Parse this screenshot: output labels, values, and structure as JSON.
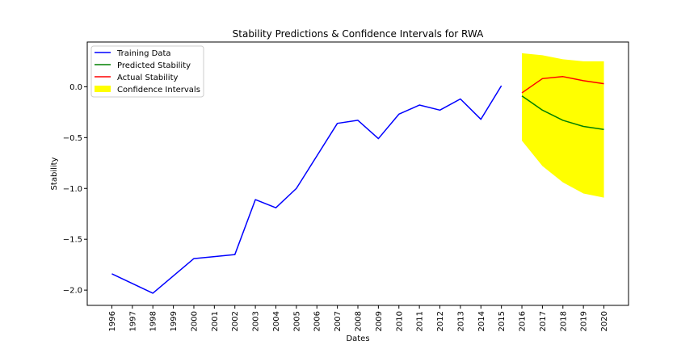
{
  "chart_data": {
    "type": "line",
    "title": "Stability Predictions & Confidence Intervals for RWA",
    "xlabel": "Dates",
    "ylabel": "Stability",
    "x_ticks": [
      "1996",
      "1997",
      "1998",
      "1999",
      "2000",
      "2001",
      "2002",
      "2003",
      "2004",
      "2005",
      "2006",
      "2007",
      "2008",
      "2009",
      "2010",
      "2011",
      "2012",
      "2013",
      "2014",
      "2015",
      "2016",
      "2017",
      "2018",
      "2019",
      "2020"
    ],
    "y_ticks": [
      "−2.0",
      "−1.5",
      "−1.0",
      "−0.5",
      "0.0"
    ],
    "xlim": [
      1994.8,
      2021.2
    ],
    "ylim": [
      -2.15,
      0.44
    ],
    "grid": false,
    "legend_position": "upper-left",
    "series": [
      {
        "name": "Training Data",
        "color": "#0000ff",
        "x": [
          1996,
          1998,
          2000,
          2002,
          2003,
          2004,
          2005,
          2006,
          2007,
          2008,
          2009,
          2010,
          2011,
          2012,
          2013,
          2014,
          2015
        ],
        "y": [
          -1.84,
          -2.03,
          -1.69,
          -1.65,
          -1.11,
          -1.19,
          -1.0,
          -0.68,
          -0.36,
          -0.33,
          -0.51,
          -0.27,
          -0.18,
          -0.23,
          -0.12,
          -0.32,
          0.01
        ]
      },
      {
        "name": "Predicted Stability",
        "color": "#008000",
        "x": [
          2016,
          2017,
          2018,
          2019,
          2020
        ],
        "y": [
          -0.09,
          -0.23,
          -0.33,
          -0.39,
          -0.42
        ]
      },
      {
        "name": "Actual Stability",
        "color": "#ff0000",
        "x": [
          2016,
          2017,
          2018,
          2019,
          2020
        ],
        "y": [
          -0.06,
          0.08,
          0.1,
          0.06,
          0.03
        ]
      }
    ],
    "band": {
      "name": "Confidence Intervals",
      "color": "#ffff00",
      "x": [
        2016,
        2017,
        2018,
        2019,
        2020
      ],
      "lower": [
        -0.53,
        -0.78,
        -0.94,
        -1.05,
        -1.09
      ],
      "upper": [
        0.33,
        0.31,
        0.27,
        0.25,
        0.25
      ]
    }
  }
}
